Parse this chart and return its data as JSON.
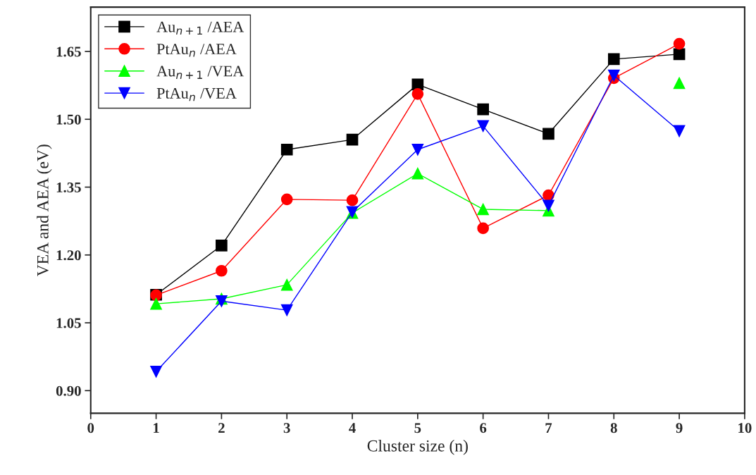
{
  "chart_data": {
    "type": "line",
    "xlabel": "Cluster size (n)",
    "ylabel": "VEA and AEA (eV)",
    "x": [
      1,
      2,
      3,
      4,
      5,
      6,
      7,
      8,
      9
    ],
    "series": [
      {
        "name": "Au$_{n+1}$ /AEA",
        "color": "#000000",
        "marker": "square",
        "values": [
          1.112,
          1.221,
          1.433,
          1.455,
          1.577,
          1.522,
          1.468,
          1.633,
          1.644
        ]
      },
      {
        "name": "PtAu$_{n}$ /AEA",
        "color": "#ff0000",
        "marker": "circle",
        "values": [
          1.111,
          1.165,
          1.323,
          1.321,
          1.556,
          1.259,
          1.332,
          1.591,
          1.667
        ]
      },
      {
        "name": "Au$_{n+1}$ /VEA",
        "color": "#00ff00",
        "marker": "triangle",
        "values": [
          1.092,
          1.103,
          1.134,
          1.293,
          1.38,
          1.301,
          1.298,
          null,
          1.58
        ]
      },
      {
        "name": "PtAu$_{n}$ /VEA",
        "color": "#0000ff",
        "marker": "triangle_down",
        "values": [
          0.942,
          1.098,
          1.078,
          1.295,
          1.433,
          1.485,
          1.309,
          1.597,
          1.474
        ]
      }
    ],
    "xlim": [
      0,
      10
    ],
    "xticks": [
      0,
      1,
      2,
      3,
      4,
      5,
      6,
      7,
      8,
      9,
      10
    ],
    "ylim": [
      0.85,
      1.748
    ],
    "yticks": [
      {
        "value": 0.9,
        "label": "0.90"
      },
      {
        "value": 1.05,
        "label": "1.05"
      },
      {
        "value": 1.2,
        "label": "1.20"
      },
      {
        "value": 1.35,
        "label": "1.35"
      },
      {
        "value": 1.5,
        "label": "1.50"
      },
      {
        "value": 1.65,
        "label": "1.65"
      }
    ],
    "grid": false,
    "legend": "top left",
    "line_style": "solid"
  }
}
